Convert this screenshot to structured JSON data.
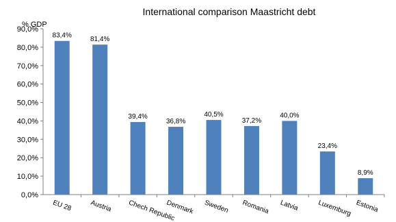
{
  "chart_data": {
    "type": "bar",
    "title": "International comparison Maastricht debt",
    "ylabel": "% GDP",
    "xlabel": "",
    "categories": [
      "EU 28",
      "Austria",
      "Chech Republic",
      "Denmark",
      "Sweden",
      "Romania",
      "Latvia",
      "Luxemburg",
      "Estonia"
    ],
    "values": [
      83.4,
      81.4,
      39.4,
      36.8,
      40.5,
      37.2,
      40.0,
      23.4,
      8.9
    ],
    "value_labels": [
      "83,4%",
      "81,4%",
      "39,4%",
      "36,8%",
      "40,5%",
      "37,2%",
      "40,0%",
      "23,4%",
      "8,9%"
    ],
    "yticks": [
      0,
      10,
      20,
      30,
      40,
      50,
      60,
      70,
      80,
      90
    ],
    "ytick_labels": [
      "0,0%",
      "10,0%",
      "20,0%",
      "30,0%",
      "40,0%",
      "50,0%",
      "60,0%",
      "70,0%",
      "80,0%",
      "90,0%"
    ],
    "ylim": [
      0,
      90
    ],
    "grid": false,
    "legend": "none",
    "bar_color": "#4f81bd"
  }
}
